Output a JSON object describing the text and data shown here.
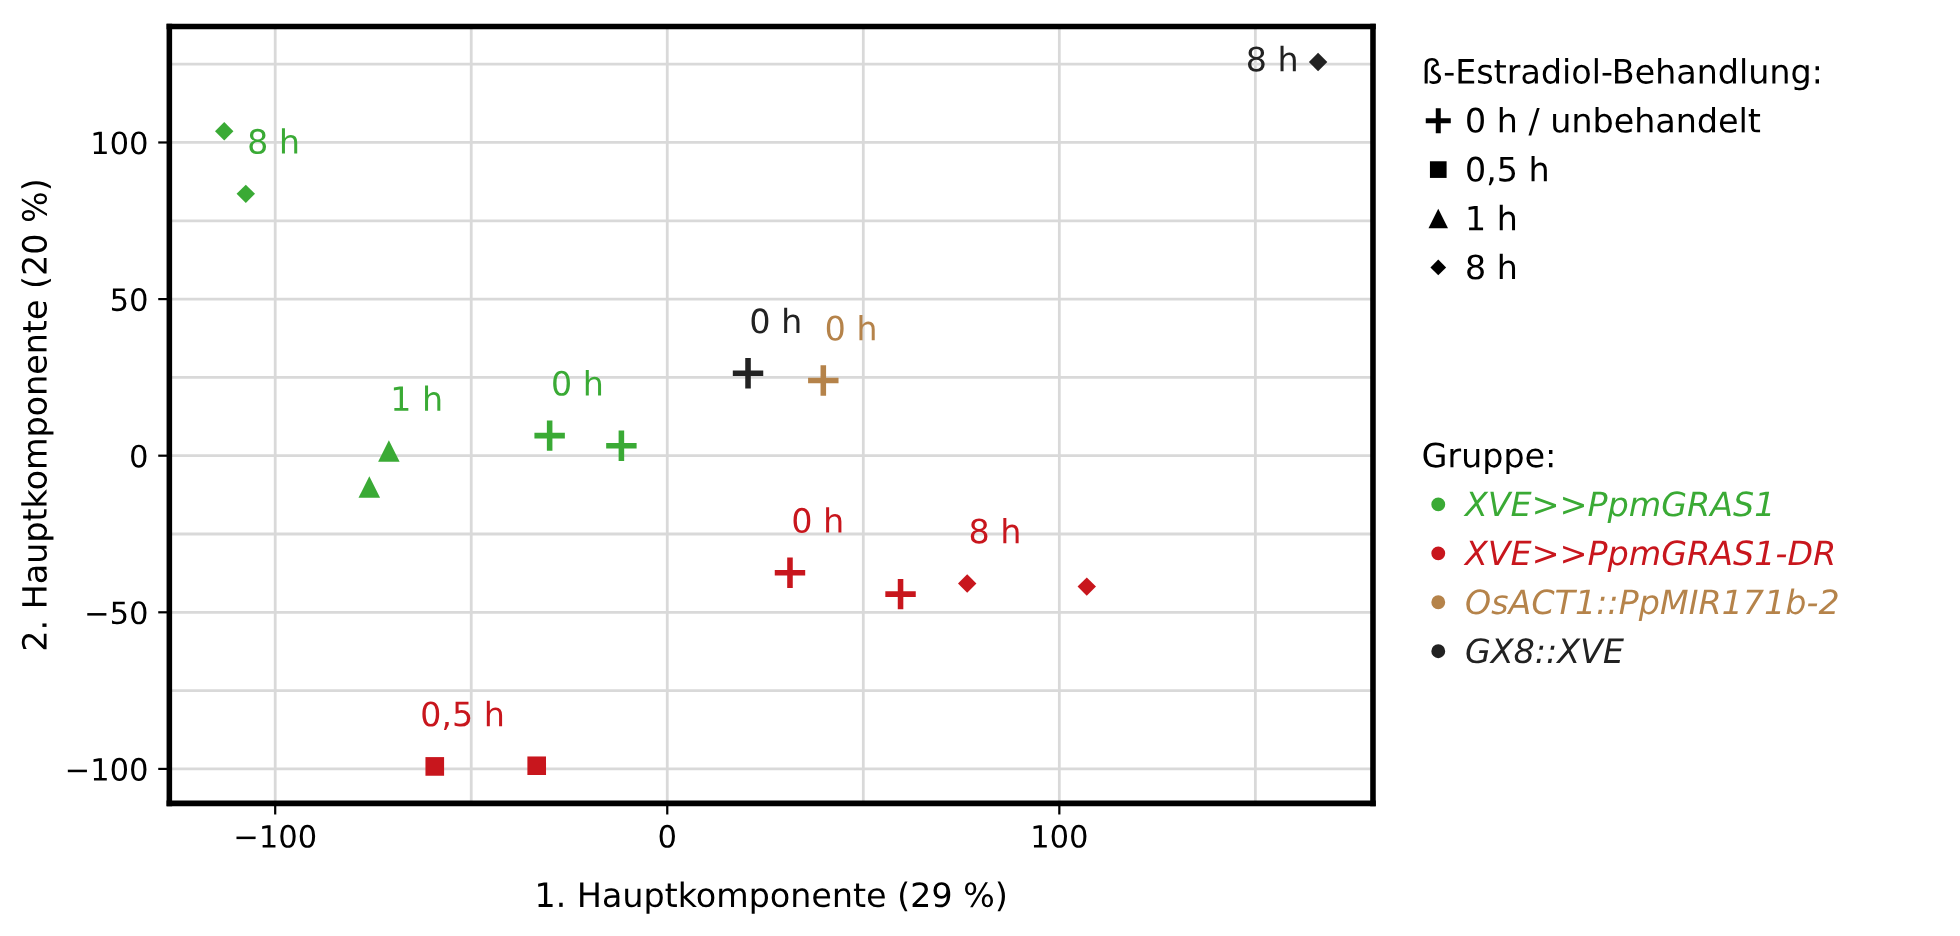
{
  "chart_data": {
    "type": "scatter",
    "xlabel": "1. Hauptkomponente (29 %)",
    "ylabel": "2. Hauptkomponente (20 %)",
    "xlim": [
      -127,
      180
    ],
    "ylim": [
      -111,
      137
    ],
    "xticks": [
      -100,
      {
        "value": -50,
        "label": null
      },
      0,
      {
        "value": 50,
        "label": null
      },
      100,
      {
        "value": 150,
        "label": null
      }
    ],
    "yticks": [
      -100,
      {
        "value": -75,
        "label": null
      },
      -50,
      {
        "value": -25,
        "label": null
      },
      0,
      {
        "value": 25,
        "label": null
      },
      50,
      {
        "value": 75,
        "label": null
      },
      100,
      {
        "value": 125,
        "label": null
      }
    ],
    "grid": true,
    "legend": "right",
    "legend_title": [
      "ß-Estradiol-Behandlung:",
      "Gruppe:"
    ],
    "series": [
      {
        "name": "0 h / unbehandelt",
        "color": "#000000",
        "marker": "cross"
      },
      {
        "name": "0,5 h",
        "color": "#000000",
        "marker": "square"
      },
      {
        "name": "1 h",
        "color": "#000000",
        "marker": "triangle"
      },
      {
        "name": "8 h",
        "color": "#000000",
        "marker": "diamond"
      },
      {
        "name": "XVE>>PpmGRAS1",
        "color": "#3aaa35",
        "marker": [
          "diamond",
          "diamond",
          "triangle",
          "triangle",
          "cross",
          "cross"
        ],
        "x": [
          -113,
          -107.5,
          -71,
          -76,
          -30,
          -11.7
        ],
        "values": [
          103.6,
          83.6,
          1.5,
          -10,
          6.4,
          3.2
        ]
      },
      {
        "name": "XVE>>PpmGRAS1-DR",
        "color": "#c8161d",
        "marker": [
          "square",
          "square",
          "cross",
          "cross",
          "diamond",
          "diamond"
        ],
        "x": [
          -59.3,
          -33.3,
          31.3,
          59.5,
          76.5,
          107
        ],
        "values": [
          -99.2,
          -99,
          -37.4,
          -44.2,
          -40.8,
          -41.8
        ]
      },
      {
        "name": "OsACT1::PpMIR171b-2",
        "color": "#b5834a",
        "marker": [
          "cross"
        ],
        "x": [
          39.8
        ],
        "values": [
          24
        ]
      },
      {
        "name": "GX8::XVE",
        "color": "#222222",
        "marker": [
          "cross",
          "diamond"
        ],
        "x": [
          20.6,
          166
        ],
        "values": [
          26.3,
          125.7
        ]
      }
    ],
    "annotations": [
      {
        "text": "8 h",
        "x": -107.5,
        "y": 83.6
      },
      {
        "text": "1 h",
        "x": -71,
        "y": 1.5
      },
      {
        "text": "0 h",
        "x": -30,
        "y": 6.4
      },
      {
        "text": "0,5 h",
        "x": -59.3,
        "y": -99.2
      },
      {
        "text": "0 h",
        "x": 31.3,
        "y": -37.4
      },
      {
        "text": "8 h",
        "x": 76.5,
        "y": -40.8
      },
      {
        "text": "0 h",
        "x": 39.8,
        "y": 24
      },
      {
        "text": "0 h",
        "x": 20.6,
        "y": 26.3
      },
      {
        "text": "8 h",
        "x": 166,
        "y": 125.7
      }
    ]
  }
}
